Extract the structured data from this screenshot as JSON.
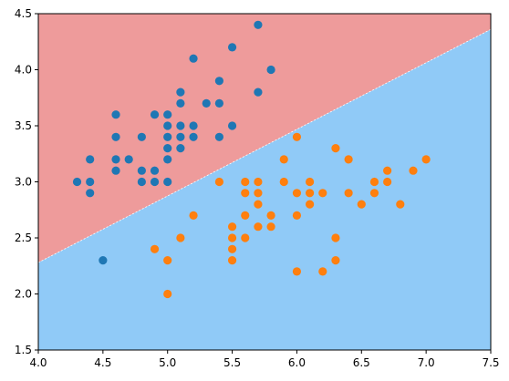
{
  "chart_data": {
    "type": "scatter",
    "title": "",
    "xlabel": "",
    "ylabel": "",
    "xlim": [
      4.0,
      7.5
    ],
    "ylim": [
      1.5,
      4.5
    ],
    "grid": false,
    "x_ticks": [
      "4.0",
      "4.5",
      "5.0",
      "5.5",
      "6.0",
      "6.5",
      "7.0",
      "7.5"
    ],
    "y_ticks": [
      "1.5",
      "2.0",
      "2.5",
      "3.0",
      "3.5",
      "4.0",
      "4.5"
    ],
    "decision_boundary": {
      "x": [
        4.0,
        7.5
      ],
      "y": [
        2.28,
        4.36
      ]
    },
    "regions": [
      {
        "side": "above",
        "color": "#ee9b9b"
      },
      {
        "side": "below",
        "color": "#90caf7"
      }
    ],
    "series": [
      {
        "color": "#1f77b4",
        "points": [
          [
            4.3,
            3.0
          ],
          [
            4.4,
            2.9
          ],
          [
            4.4,
            3.0
          ],
          [
            4.4,
            3.2
          ],
          [
            4.5,
            2.3
          ],
          [
            4.6,
            3.1
          ],
          [
            4.6,
            3.2
          ],
          [
            4.6,
            3.4
          ],
          [
            4.6,
            3.6
          ],
          [
            4.7,
            3.2
          ],
          [
            4.8,
            3.0
          ],
          [
            4.8,
            3.1
          ],
          [
            4.8,
            3.4
          ],
          [
            4.9,
            3.0
          ],
          [
            4.9,
            3.1
          ],
          [
            4.9,
            3.6
          ],
          [
            5.0,
            3.0
          ],
          [
            5.0,
            3.2
          ],
          [
            5.0,
            3.3
          ],
          [
            5.0,
            3.4
          ],
          [
            5.0,
            3.5
          ],
          [
            5.0,
            3.6
          ],
          [
            5.1,
            3.3
          ],
          [
            5.1,
            3.4
          ],
          [
            5.1,
            3.5
          ],
          [
            5.1,
            3.7
          ],
          [
            5.1,
            3.8
          ],
          [
            5.2,
            3.4
          ],
          [
            5.2,
            3.5
          ],
          [
            5.2,
            4.1
          ],
          [
            5.3,
            3.7
          ],
          [
            5.4,
            3.4
          ],
          [
            5.4,
            3.7
          ],
          [
            5.4,
            3.9
          ],
          [
            5.5,
            3.5
          ],
          [
            5.5,
            4.2
          ],
          [
            5.7,
            3.8
          ],
          [
            5.7,
            4.4
          ],
          [
            5.8,
            4.0
          ]
        ]
      },
      {
        "color": "#ff7f0e",
        "points": [
          [
            4.9,
            2.4
          ],
          [
            5.0,
            2.0
          ],
          [
            5.0,
            2.3
          ],
          [
            5.1,
            2.5
          ],
          [
            5.2,
            2.7
          ],
          [
            5.4,
            3.0
          ],
          [
            5.5,
            2.3
          ],
          [
            5.5,
            2.4
          ],
          [
            5.5,
            2.5
          ],
          [
            5.5,
            2.6
          ],
          [
            5.6,
            2.5
          ],
          [
            5.6,
            2.7
          ],
          [
            5.6,
            2.9
          ],
          [
            5.6,
            3.0
          ],
          [
            5.7,
            2.6
          ],
          [
            5.7,
            2.8
          ],
          [
            5.7,
            2.9
          ],
          [
            5.7,
            3.0
          ],
          [
            5.8,
            2.6
          ],
          [
            5.8,
            2.7
          ],
          [
            5.9,
            3.0
          ],
          [
            5.9,
            3.2
          ],
          [
            6.0,
            2.2
          ],
          [
            6.0,
            2.7
          ],
          [
            6.0,
            2.9
          ],
          [
            6.0,
            3.4
          ],
          [
            6.1,
            2.8
          ],
          [
            6.1,
            2.9
          ],
          [
            6.1,
            3.0
          ],
          [
            6.2,
            2.2
          ],
          [
            6.2,
            2.9
          ],
          [
            6.3,
            2.3
          ],
          [
            6.3,
            2.5
          ],
          [
            6.3,
            3.3
          ],
          [
            6.4,
            2.9
          ],
          [
            6.4,
            3.2
          ],
          [
            6.5,
            2.8
          ],
          [
            6.6,
            2.9
          ],
          [
            6.6,
            3.0
          ],
          [
            6.7,
            3.0
          ],
          [
            6.7,
            3.1
          ],
          [
            6.8,
            2.8
          ],
          [
            6.9,
            3.1
          ],
          [
            7.0,
            3.2
          ]
        ]
      }
    ]
  }
}
